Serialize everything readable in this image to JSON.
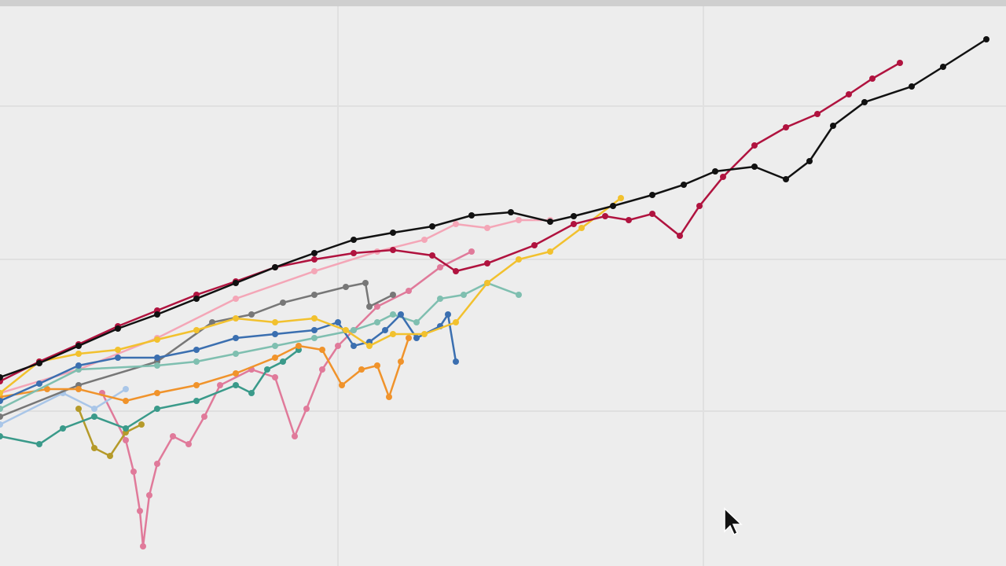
{
  "chart_data": {
    "type": "line",
    "xlim": [
      0,
      1280
    ],
    "ylim": [
      0,
      720
    ],
    "xticks": [
      430,
      895
    ],
    "yticks": [
      197,
      390,
      585
    ],
    "grid": true,
    "series": [
      {
        "color": "#e07a9a",
        "x": [
          130,
          160,
          170,
          178,
          182,
          190,
          200,
          220,
          240,
          260,
          280,
          320,
          350,
          375,
          390,
          410,
          430,
          450,
          480,
          520,
          560,
          600
        ],
        "values": [
          220,
          160,
          120,
          70,
          25,
          90,
          130,
          165,
          155,
          190,
          230,
          250,
          240,
          165,
          200,
          250,
          280,
          300,
          330,
          350,
          380,
          400
        ]
      },
      {
        "color": "#a9c6e8",
        "x": [
          0,
          80,
          120,
          160
        ],
        "values": [
          180,
          220,
          200,
          225
        ]
      },
      {
        "color": "#b59a2a",
        "x": [
          100,
          120,
          140,
          160,
          180
        ],
        "values": [
          200,
          150,
          140,
          170,
          180
        ]
      },
      {
        "color": "#3a9a8a",
        "x": [
          0,
          50,
          80,
          120,
          160,
          200,
          250,
          300,
          320,
          340,
          360,
          380
        ],
        "values": [
          165,
          155,
          175,
          190,
          175,
          200,
          210,
          230,
          220,
          250,
          260,
          275
        ]
      },
      {
        "color": "#f4a6b7",
        "x": [
          0,
          100,
          200,
          300,
          400,
          480,
          540,
          580,
          620,
          660,
          700
        ],
        "values": [
          220,
          250,
          290,
          340,
          375,
          400,
          415,
          435,
          430,
          440,
          440
        ]
      },
      {
        "color": "#777777",
        "x": [
          0,
          100,
          200,
          270,
          320,
          360,
          400,
          440,
          465,
          470,
          500
        ],
        "values": [
          190,
          230,
          260,
          310,
          320,
          335,
          345,
          355,
          360,
          330,
          345
        ]
      },
      {
        "color": "#f0932b",
        "x": [
          0,
          60,
          100,
          160,
          200,
          250,
          300,
          350,
          380,
          410,
          435,
          460,
          480,
          495,
          510,
          520
        ],
        "values": [
          215,
          225,
          225,
          210,
          220,
          230,
          245,
          265,
          280,
          275,
          230,
          250,
          255,
          215,
          260,
          290
        ]
      },
      {
        "color": "#7fbfb0",
        "x": [
          0,
          100,
          200,
          250,
          300,
          350,
          400,
          450,
          480,
          500,
          530,
          560,
          590,
          620,
          660
        ],
        "values": [
          200,
          250,
          255,
          260,
          270,
          280,
          290,
          300,
          310,
          320,
          310,
          340,
          345,
          360,
          345
        ]
      },
      {
        "color": "#3b6fb0",
        "x": [
          0,
          50,
          100,
          150,
          200,
          250,
          300,
          350,
          400,
          430,
          450,
          470,
          490,
          510,
          530,
          560,
          570,
          580
        ],
        "values": [
          210,
          232,
          255,
          265,
          265,
          275,
          290,
          295,
          300,
          310,
          280,
          285,
          300,
          320,
          290,
          305,
          320,
          260
        ]
      },
      {
        "color": "#f2c12e",
        "x": [
          0,
          50,
          100,
          150,
          200,
          250,
          300,
          350,
          400,
          440,
          470,
          500,
          540,
          580,
          620,
          660,
          700,
          740,
          790
        ],
        "values": [
          220,
          260,
          270,
          275,
          288,
          300,
          315,
          310,
          315,
          300,
          280,
          295,
          295,
          310,
          360,
          390,
          400,
          430,
          468
        ]
      },
      {
        "color": "#b0133f",
        "x": [
          0,
          50,
          100,
          150,
          200,
          250,
          300,
          350,
          400,
          450,
          500,
          550,
          580,
          620,
          680,
          730,
          770,
          800,
          830,
          865,
          890,
          920,
          960,
          1000,
          1040,
          1080,
          1110,
          1145
        ],
        "values": [
          235,
          260,
          282,
          305,
          325,
          345,
          362,
          380,
          390,
          398,
          402,
          395,
          375,
          385,
          408,
          435,
          445,
          440,
          448,
          420,
          458,
          495,
          535,
          558,
          575,
          600,
          620,
          640
        ]
      },
      {
        "color": "#111111",
        "x": [
          0,
          50,
          100,
          150,
          200,
          250,
          300,
          350,
          400,
          450,
          500,
          550,
          600,
          650,
          700,
          730,
          780,
          830,
          870,
          910,
          960,
          1000,
          1030,
          1060,
          1100,
          1160,
          1200,
          1255
        ],
        "values": [
          240,
          258,
          280,
          302,
          320,
          340,
          360,
          380,
          398,
          415,
          424,
          432,
          446,
          450,
          438,
          445,
          458,
          472,
          485,
          502,
          508,
          492,
          515,
          560,
          590,
          610,
          635,
          670
        ]
      }
    ]
  }
}
